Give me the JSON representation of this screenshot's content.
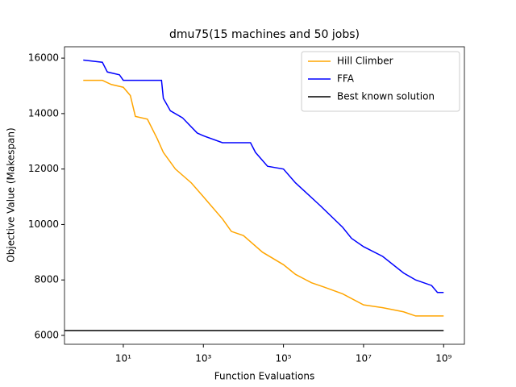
{
  "chart_data": {
    "type": "line",
    "title": "dmu75(15 machines and 50 jobs)",
    "x_label": "Function Evaluations",
    "y_label": "Objective Value (Makespan)",
    "xscale": "log",
    "xlim": [
      0.34,
      3300000000
    ],
    "ylim": [
      5680,
      16410
    ],
    "xticks": [
      {
        "value": 10,
        "label": "10¹"
      },
      {
        "value": 1000,
        "label": "10³"
      },
      {
        "value": 100000,
        "label": "10⁵"
      },
      {
        "value": 10000000,
        "label": "10⁷"
      },
      {
        "value": 1000000000,
        "label": "10⁹"
      }
    ],
    "yticks": [
      6000,
      8000,
      10000,
      12000,
      14000,
      16000
    ],
    "legend": "upper right",
    "series": [
      {
        "name": "Hill Climber",
        "color": "#ffa500",
        "x": [
          1,
          3,
          5,
          10,
          15,
          20,
          40,
          70,
          100,
          200,
          500,
          1000,
          3000,
          5000,
          10000,
          30000,
          100000,
          200000,
          500000,
          1000000,
          3000000,
          10000000,
          30000000,
          100000000,
          200000000,
          1000000000
        ],
        "values": [
          15200,
          15200,
          15050,
          14950,
          14650,
          13900,
          13800,
          13100,
          12600,
          12000,
          11500,
          11000,
          10200,
          9750,
          9600,
          9000,
          8550,
          8200,
          7900,
          7750,
          7500,
          7100,
          7000,
          6850,
          6700,
          6700
        ]
      },
      {
        "name": "FFA",
        "color": "#0000ff",
        "x": [
          1,
          3,
          4,
          8,
          10,
          90,
          100,
          150,
          300,
          700,
          1000,
          3000,
          15000,
          20000,
          40000,
          100000,
          200000,
          400000,
          800000,
          3000000,
          5000000,
          10000000,
          30000000,
          100000000,
          200000000,
          500000000,
          700000000,
          1000000000
        ],
        "values": [
          15930,
          15850,
          15500,
          15400,
          15200,
          15200,
          14550,
          14100,
          13850,
          13300,
          13200,
          12950,
          12950,
          12600,
          12100,
          12000,
          11500,
          11100,
          10700,
          9900,
          9500,
          9200,
          8850,
          8250,
          8000,
          7800,
          7550,
          7550
        ]
      },
      {
        "name": "Best known solution",
        "color": "#000000",
        "x": [
          0.34,
          1000000000
        ],
        "values": [
          6175,
          6175
        ]
      }
    ]
  }
}
